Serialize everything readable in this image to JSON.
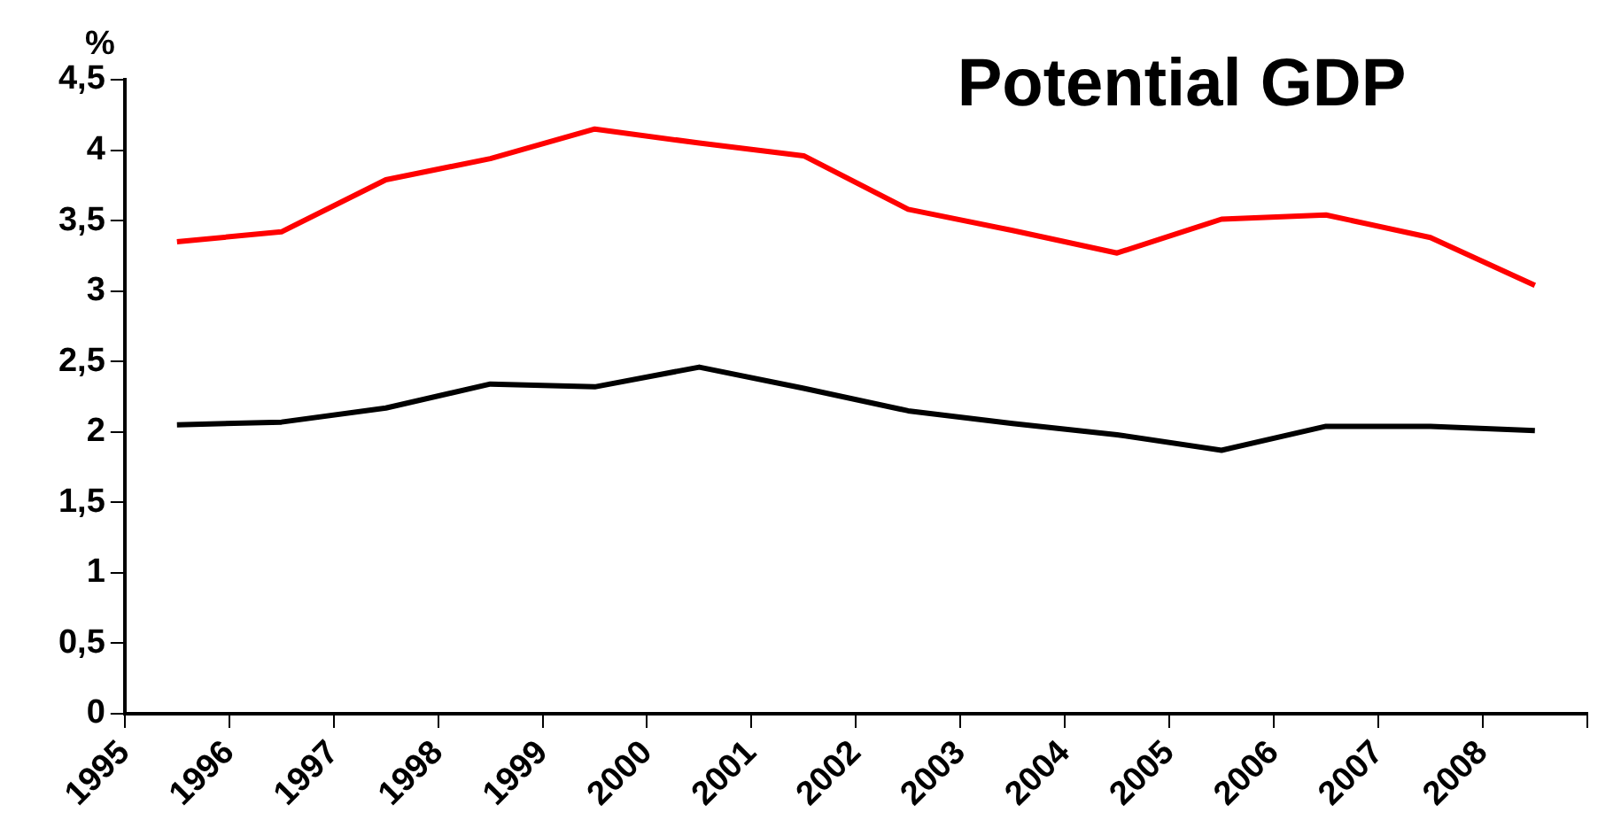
{
  "chart_data": {
    "type": "line",
    "title": "Potential GDP",
    "ylabel": "%",
    "x": [
      1995.5,
      1996.5,
      1997.5,
      1998.5,
      1999.5,
      2000.5,
      2001.5,
      2002.5,
      2003.5,
      2004.5,
      2005.5,
      2006.5,
      2007.5,
      2008.5
    ],
    "xlim": [
      1995,
      2009
    ],
    "xticks": [
      {
        "value": 1995,
        "label": "1995"
      },
      {
        "value": 1996,
        "label": "1996"
      },
      {
        "value": 1997,
        "label": "1997"
      },
      {
        "value": 1998,
        "label": "1998"
      },
      {
        "value": 1999,
        "label": "1999"
      },
      {
        "value": 2000,
        "label": "2000"
      },
      {
        "value": 2001,
        "label": "2001"
      },
      {
        "value": 2002,
        "label": "2002"
      },
      {
        "value": 2003,
        "label": "2003"
      },
      {
        "value": 2004,
        "label": "2004"
      },
      {
        "value": 2005,
        "label": "2005"
      },
      {
        "value": 2006,
        "label": "2006"
      },
      {
        "value": 2007,
        "label": "2007"
      },
      {
        "value": 2008,
        "label": "2008"
      },
      {
        "value": 2009,
        "label": null
      }
    ],
    "series": [
      {
        "color": "#ff0000",
        "values": [
          3.35,
          3.42,
          3.79,
          3.94,
          4.15,
          4.05,
          3.96,
          3.58,
          3.43,
          3.27,
          3.51,
          3.54,
          3.38,
          3.04
        ]
      },
      {
        "color": "#000000",
        "values": [
          2.05,
          2.07,
          2.17,
          2.34,
          2.32,
          2.46,
          2.31,
          2.15,
          2.06,
          1.98,
          1.87,
          2.04,
          2.04,
          2.01
        ]
      }
    ],
    "ylim": [
      0,
      4.5
    ],
    "yticks": [
      0,
      {
        "value": 0.5,
        "label": "0,5"
      },
      1,
      {
        "value": 1.5,
        "label": "1,5"
      },
      2,
      {
        "value": 2.5,
        "label": "2,5"
      },
      3,
      {
        "value": 3.5,
        "label": "3,5"
      },
      4,
      {
        "value": 4.5,
        "label": "4,5"
      }
    ],
    "grid": false,
    "legend": false,
    "marker": "none",
    "line_style": "solid"
  }
}
